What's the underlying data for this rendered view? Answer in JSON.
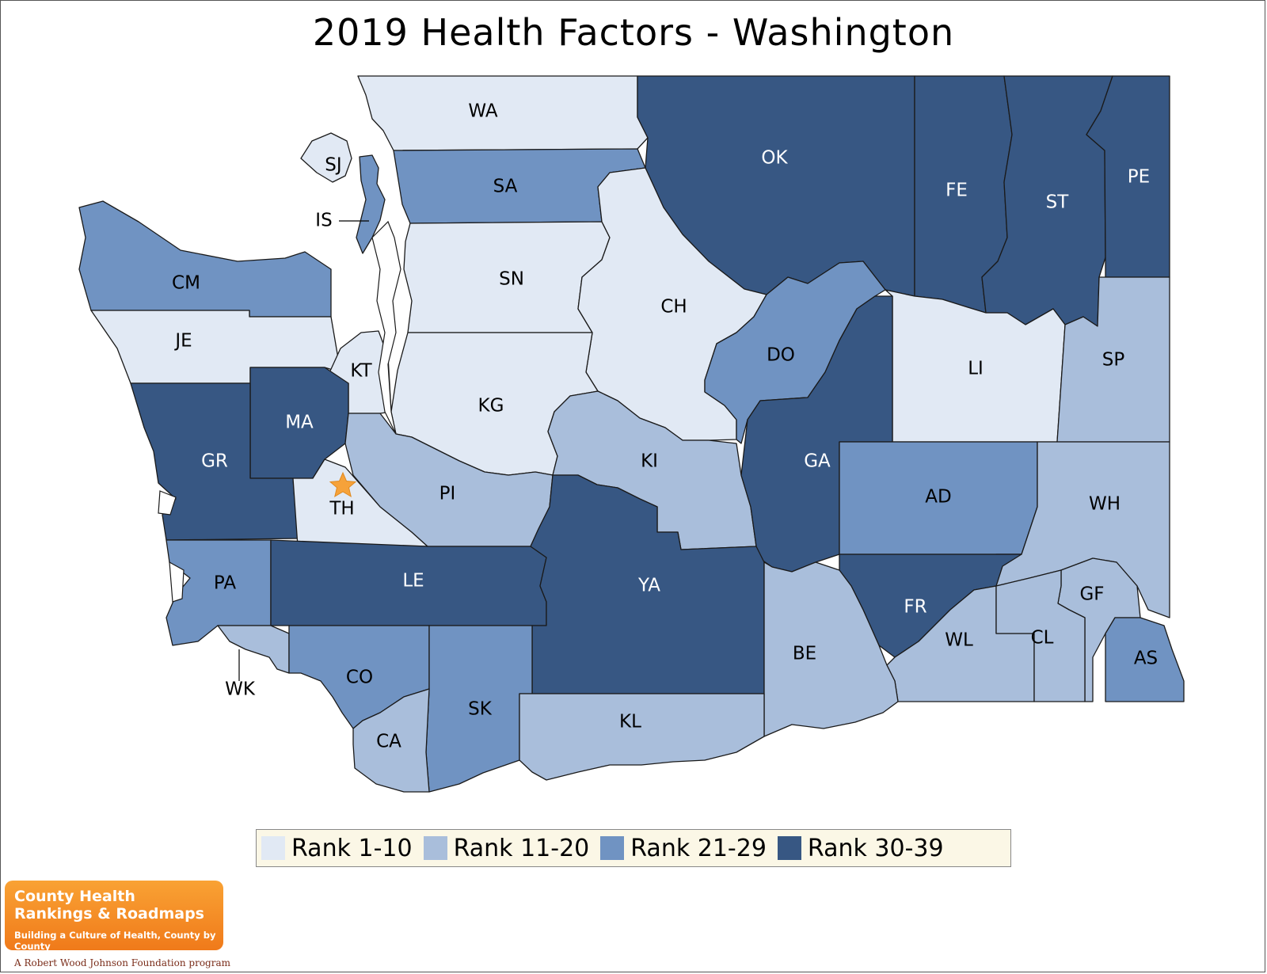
{
  "title": "2019 Health Factors - Washington",
  "legend": [
    {
      "label": "Rank 1-10",
      "color": "#e1e9f4"
    },
    {
      "label": "Rank 11-20",
      "color": "#a9bedb"
    },
    {
      "label": "Rank 21-29",
      "color": "#7093c2"
    },
    {
      "label": "Rank 30-39",
      "color": "#375783"
    }
  ],
  "logo": {
    "line1": "County Health",
    "line2": "Rankings & Roadmaps",
    "tagline": "Building a Culture of Health, County by County",
    "program": "A Robert Wood Johnson Foundation program"
  },
  "counties": [
    {
      "code": "WA",
      "tier": 0
    },
    {
      "code": "SJ",
      "tier": 0
    },
    {
      "code": "IS",
      "tier": 2
    },
    {
      "code": "SA",
      "tier": 2
    },
    {
      "code": "OK",
      "tier": 3
    },
    {
      "code": "FE",
      "tier": 3
    },
    {
      "code": "ST",
      "tier": 3
    },
    {
      "code": "PE",
      "tier": 3
    },
    {
      "code": "CM",
      "tier": 2
    },
    {
      "code": "SN",
      "tier": 0
    },
    {
      "code": "CH",
      "tier": 0
    },
    {
      "code": "JE",
      "tier": 0
    },
    {
      "code": "KT",
      "tier": 0
    },
    {
      "code": "DO",
      "tier": 2
    },
    {
      "code": "LI",
      "tier": 0
    },
    {
      "code": "SP",
      "tier": 1
    },
    {
      "code": "KG",
      "tier": 0
    },
    {
      "code": "MA",
      "tier": 3
    },
    {
      "code": "GR",
      "tier": 3
    },
    {
      "code": "KI",
      "tier": 1
    },
    {
      "code": "GA",
      "tier": 3
    },
    {
      "code": "TH",
      "tier": 0
    },
    {
      "code": "PI",
      "tier": 1
    },
    {
      "code": "AD",
      "tier": 2
    },
    {
      "code": "WH",
      "tier": 1
    },
    {
      "code": "PA",
      "tier": 2
    },
    {
      "code": "LE",
      "tier": 3
    },
    {
      "code": "YA",
      "tier": 3
    },
    {
      "code": "FR",
      "tier": 3
    },
    {
      "code": "GF",
      "tier": 1
    },
    {
      "code": "WL",
      "tier": 1
    },
    {
      "code": "CL",
      "tier": 1
    },
    {
      "code": "BE",
      "tier": 1
    },
    {
      "code": "AS",
      "tier": 2
    },
    {
      "code": "WK",
      "tier": 1
    },
    {
      "code": "CO",
      "tier": 2
    },
    {
      "code": "SK",
      "tier": 2
    },
    {
      "code": "CA",
      "tier": 1
    },
    {
      "code": "KL",
      "tier": 1
    }
  ],
  "capital_marker": "TH"
}
